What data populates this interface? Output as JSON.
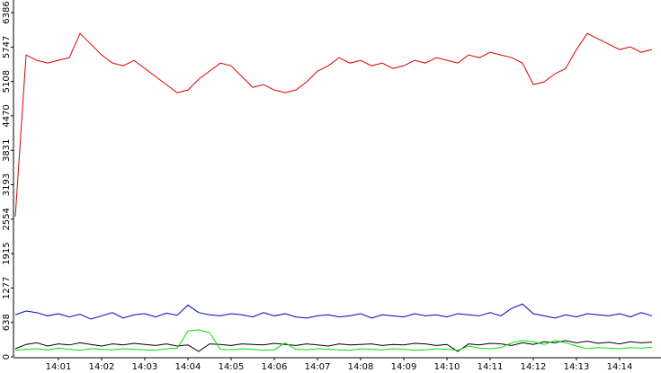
{
  "chart_data": {
    "type": "line",
    "categories": [
      null,
      null,
      null,
      null,
      "14:01",
      null,
      null,
      null,
      "14:02",
      null,
      null,
      null,
      "14:03",
      null,
      null,
      null,
      "14:04",
      null,
      null,
      null,
      "14:05",
      null,
      null,
      null,
      "14:06",
      null,
      null,
      null,
      "14:07",
      null,
      null,
      null,
      "14:08",
      null,
      null,
      null,
      "14:09",
      null,
      null,
      null,
      "14:10",
      null,
      null,
      null,
      "14:11",
      null,
      null,
      null,
      "14:12",
      null,
      null,
      null,
      "14:13",
      null,
      null,
      null,
      "14:14",
      null,
      null,
      null
    ],
    "series": [
      {
        "color": "#e00000",
        "values": [
          2600,
          5600,
          5500,
          5450,
          5500,
          5550,
          6000,
          5800,
          5600,
          5450,
          5400,
          5500,
          5350,
          5200,
          5050,
          4900,
          4950,
          5150,
          5300,
          5450,
          5400,
          5200,
          5000,
          5050,
          4950,
          4900,
          4950,
          5100,
          5300,
          5400,
          5550,
          5450,
          5500,
          5400,
          5450,
          5350,
          5400,
          5500,
          5450,
          5550,
          5500,
          5450,
          5600,
          5550,
          5650,
          5600,
          5550,
          5450,
          5050,
          5100,
          5250,
          5350,
          5700,
          6000,
          5900,
          5800,
          5700,
          5750,
          5650,
          5700
        ]
      },
      {
        "color": "#0000c0",
        "values": [
          780,
          850,
          820,
          760,
          800,
          740,
          790,
          700,
          760,
          820,
          720,
          780,
          800,
          740,
          810,
          770,
          960,
          820,
          780,
          760,
          800,
          780,
          740,
          820,
          760,
          800,
          740,
          720,
          760,
          780,
          740,
          760,
          800,
          720,
          780,
          760,
          740,
          800,
          760,
          780,
          740,
          800,
          780,
          760,
          820,
          760,
          900,
          980,
          800,
          760,
          720,
          780,
          740,
          800,
          780,
          760,
          800,
          740,
          820,
          760
        ]
      },
      {
        "color": "#000000",
        "values": [
          150,
          230,
          260,
          200,
          240,
          220,
          260,
          230,
          200,
          240,
          220,
          250,
          230,
          210,
          240,
          200,
          220,
          100,
          240,
          230,
          210,
          240,
          230,
          220,
          250,
          230,
          210,
          240,
          220,
          200,
          240,
          220,
          230,
          240,
          210,
          230,
          220,
          250,
          240,
          210,
          230,
          100,
          240,
          220,
          250,
          240,
          210,
          260,
          230,
          280,
          260,
          300,
          260,
          290,
          250,
          270,
          240,
          280,
          260,
          270
        ]
      },
      {
        "color": "#00e000",
        "values": [
          120,
          140,
          150,
          130,
          160,
          140,
          120,
          150,
          140,
          130,
          150,
          140,
          130,
          120,
          150,
          160,
          480,
          500,
          450,
          140,
          130,
          150,
          140,
          120,
          130,
          260,
          140,
          130,
          150,
          140,
          130,
          120,
          150,
          140,
          130,
          150,
          140,
          120,
          130,
          150,
          140,
          120,
          200,
          160,
          150,
          170,
          260,
          300,
          280,
          230,
          300,
          260,
          200,
          150,
          170,
          160,
          150,
          170,
          160,
          180
        ]
      }
    ],
    "ylim": [
      0,
      6620
    ],
    "yticks": [
      0,
      638,
      1277,
      1915,
      2554,
      3193,
      3831,
      4470,
      5108,
      5747,
      6386
    ]
  }
}
